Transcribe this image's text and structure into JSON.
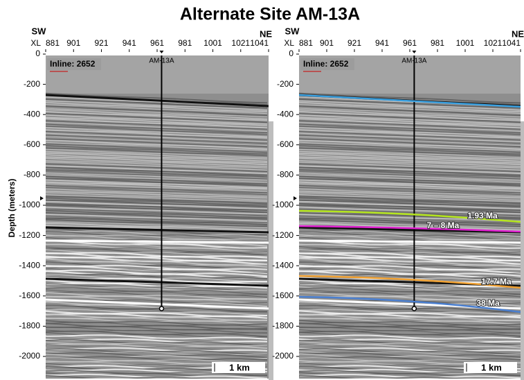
{
  "title": "Alternate Site AM-13A",
  "axis": {
    "y_label": "Depth (meters)",
    "x_prefix": "XL",
    "left_dir": "SW",
    "right_dir": "NE",
    "xticks": [
      881,
      901,
      921,
      941,
      961,
      981,
      1001,
      1021,
      1041
    ],
    "yticks": [
      0,
      -200,
      -400,
      -600,
      -800,
      -1000,
      -1200,
      -1400,
      -1600,
      -1800,
      -2000
    ]
  },
  "panels": [
    {
      "inline_label": "Inline: 2652",
      "well_label": "AM-13A",
      "scale_label": "1 km"
    },
    {
      "inline_label": "Inline: 2652",
      "well_label": "AM-13A",
      "scale_label": "1 km",
      "horizons": [
        {
          "label": "1.93 Ma"
        },
        {
          "label": "7 – 8 Ma"
        },
        {
          "label": "17.7 Ma"
        },
        {
          "label": "38 Ma"
        }
      ]
    }
  ]
}
